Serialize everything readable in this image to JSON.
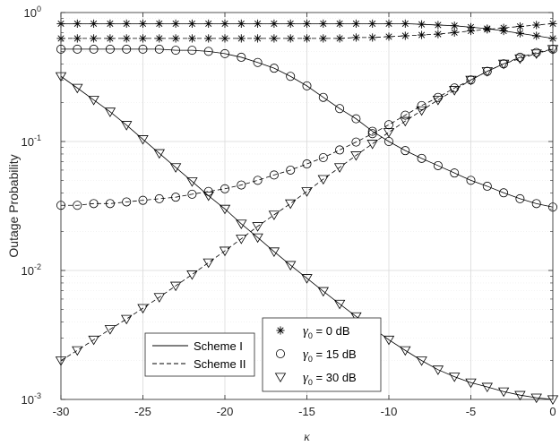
{
  "chart_data": {
    "type": "line",
    "xlabel": "κ",
    "ylabel": "Outage Probability",
    "xlim": [
      -30,
      0
    ],
    "ylim": [
      0.001,
      1
    ],
    "yscale": "log",
    "grid": true,
    "x_ticks": [
      "-30",
      "-25",
      "-20",
      "-15",
      "-10",
      "-5",
      "0"
    ],
    "y_ticks": [
      {
        "base": "10",
        "exp": "-3",
        "value": 0.001
      },
      {
        "base": "10",
        "exp": "-2",
        "value": 0.01
      },
      {
        "base": "10",
        "exp": "-1",
        "value": 0.1
      },
      {
        "base": "10",
        "exp": "0",
        "value": 1
      }
    ],
    "x": [
      -30,
      -29,
      -28,
      -27,
      -26,
      -25,
      -24,
      -23,
      -22,
      -21,
      -20,
      -19,
      -18,
      -17,
      -16,
      -15,
      -14,
      -13,
      -12,
      -11,
      -10,
      -9,
      -8,
      -7,
      -6,
      -5,
      -4,
      -3,
      -2,
      -1,
      0
    ],
    "series": [
      {
        "scheme": "Scheme I",
        "gamma_db": 0,
        "marker": "asterisk",
        "values": [
          0.82,
          0.82,
          0.82,
          0.82,
          0.82,
          0.82,
          0.82,
          0.82,
          0.82,
          0.82,
          0.82,
          0.82,
          0.82,
          0.82,
          0.82,
          0.82,
          0.82,
          0.82,
          0.82,
          0.82,
          0.82,
          0.82,
          0.81,
          0.8,
          0.79,
          0.77,
          0.75,
          0.72,
          0.69,
          0.66,
          0.63
        ]
      },
      {
        "scheme": "Scheme II",
        "gamma_db": 0,
        "marker": "asterisk",
        "values": [
          0.63,
          0.63,
          0.63,
          0.63,
          0.63,
          0.63,
          0.63,
          0.63,
          0.63,
          0.63,
          0.63,
          0.63,
          0.63,
          0.63,
          0.63,
          0.63,
          0.63,
          0.63,
          0.64,
          0.64,
          0.65,
          0.66,
          0.67,
          0.68,
          0.7,
          0.72,
          0.74,
          0.76,
          0.78,
          0.8,
          0.82
        ]
      },
      {
        "scheme": "Scheme I",
        "gamma_db": 15,
        "marker": "circle",
        "values": [
          0.52,
          0.52,
          0.52,
          0.52,
          0.52,
          0.52,
          0.52,
          0.51,
          0.51,
          0.5,
          0.48,
          0.45,
          0.41,
          0.37,
          0.32,
          0.27,
          0.22,
          0.18,
          0.15,
          0.12,
          0.1,
          0.085,
          0.074,
          0.065,
          0.057,
          0.05,
          0.045,
          0.04,
          0.036,
          0.033,
          0.031
        ]
      },
      {
        "scheme": "Scheme II",
        "gamma_db": 15,
        "marker": "circle",
        "values": [
          0.032,
          0.032,
          0.033,
          0.033,
          0.034,
          0.035,
          0.036,
          0.037,
          0.039,
          0.041,
          0.043,
          0.046,
          0.05,
          0.055,
          0.06,
          0.067,
          0.075,
          0.086,
          0.099,
          0.115,
          0.135,
          0.16,
          0.19,
          0.22,
          0.26,
          0.3,
          0.35,
          0.4,
          0.45,
          0.49,
          0.52
        ]
      },
      {
        "scheme": "Scheme I",
        "gamma_db": 30,
        "marker": "triangle",
        "values": [
          0.32,
          0.26,
          0.21,
          0.17,
          0.134,
          0.104,
          0.081,
          0.063,
          0.049,
          0.038,
          0.03,
          0.023,
          0.018,
          0.014,
          0.011,
          0.0087,
          0.0069,
          0.0055,
          0.0044,
          0.0036,
          0.0029,
          0.0024,
          0.002,
          0.0017,
          0.0015,
          0.00135,
          0.00125,
          0.00115,
          0.00108,
          0.00103,
          0.001
        ]
      },
      {
        "scheme": "Scheme II",
        "gamma_db": 30,
        "marker": "triangle",
        "values": [
          0.002,
          0.0024,
          0.0029,
          0.0035,
          0.0042,
          0.0051,
          0.0062,
          0.0076,
          0.0093,
          0.0115,
          0.0142,
          0.0176,
          0.022,
          0.027,
          0.033,
          0.041,
          0.051,
          0.063,
          0.078,
          0.096,
          0.118,
          0.144,
          0.174,
          0.21,
          0.25,
          0.3,
          0.35,
          0.4,
          0.44,
          0.48,
          0.52
        ]
      }
    ],
    "legend_schemes": [
      {
        "label": "Scheme I",
        "style": "solid"
      },
      {
        "label": "Scheme II",
        "style": "dashed"
      }
    ],
    "legend_markers": [
      {
        "marker": "asterisk",
        "symbol": "γ",
        "sub": "0",
        "text": " =   0 dB"
      },
      {
        "marker": "circle",
        "symbol": "γ",
        "sub": "0",
        "text": " = 15 dB"
      },
      {
        "marker": "triangle",
        "symbol": "γ",
        "sub": "0",
        "text": " = 30 dB"
      }
    ]
  }
}
